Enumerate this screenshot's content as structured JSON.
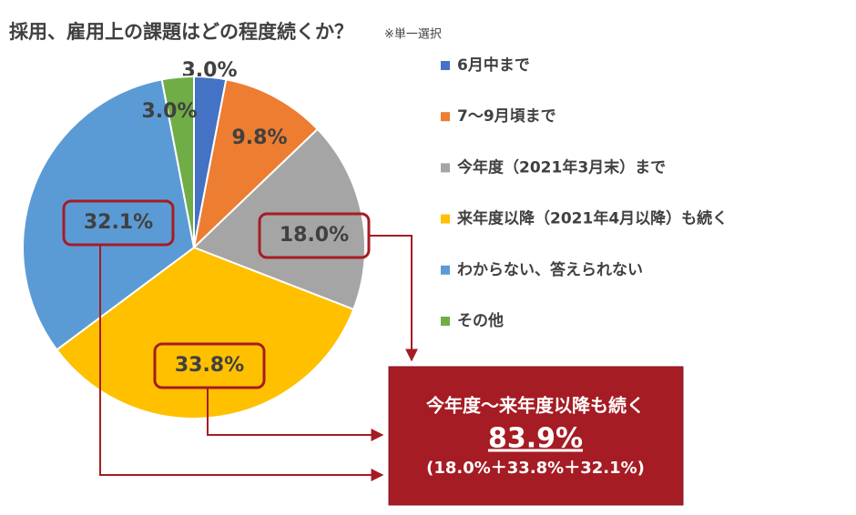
{
  "chart_data": {
    "type": "pie",
    "title": "採用、雇用上の課題はどの程度続くか？",
    "subtitle": "※単一選択",
    "categories": [
      "6月中まで",
      "7～9月頃まで",
      "今年度（2021年3月末）まで",
      "来年度以降（2021年4月以降）も続く",
      "わからない、答えられない",
      "その他"
    ],
    "values": [
      3.0,
      9.8,
      18.0,
      33.8,
      32.1,
      3.0
    ],
    "value_labels": [
      "3.0%",
      "9.8%",
      "18.0%",
      "33.8%",
      "32.1%",
      "3.0%"
    ],
    "colors": [
      "#4472c4",
      "#ed7d31",
      "#a5a5a5",
      "#ffc000",
      "#5b9bd5",
      "#70ad47"
    ],
    "legend": "right",
    "annotation": {
      "title": "今年度～来年度以降も続く",
      "value": "83.9%",
      "detail": "(18.0%＋33.8%＋32.1%)"
    }
  }
}
